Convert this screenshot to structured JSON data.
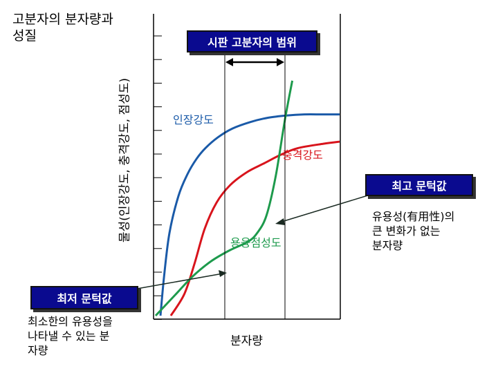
{
  "title": "고분자의 분자량과\n성질",
  "colors": {
    "tensile": "#1a5aa8",
    "impact": "#d8141c",
    "melt_viscosity": "#1d9a4c",
    "box_bg": "#0a0a8f"
  },
  "annotations": {
    "commercial_range": "시판 고분자의 범위",
    "max_value": "최고 문턱값",
    "max_note": "유용성(有用性)의\n큰 변화가 없는\n분자량",
    "min_value": "최저 문턱값",
    "min_note": "최소한의 유용성을\n나타낼 수 있는 분\n자량"
  },
  "chart_data": {
    "type": "line",
    "title": "",
    "xlabel": "분자량",
    "ylabel": "물성(인장강도, 충격강도, 점성도)",
    "xlim": [
      0,
      100
    ],
    "ylim": [
      0,
      100
    ],
    "grid": false,
    "series": [
      {
        "name": "인장강도",
        "color": "#1a5aa8",
        "x": [
          0,
          2,
          5,
          10,
          15,
          20,
          25,
          32,
          40,
          50,
          60,
          70,
          80,
          90,
          100
        ],
        "y": [
          0,
          18,
          38,
          55,
          65,
          72,
          77,
          82,
          86,
          89,
          91,
          92,
          92.5,
          92.5,
          92.5
        ]
      },
      {
        "name": "충격강도",
        "color": "#d8141c",
        "x": [
          0,
          8,
          14,
          20,
          27,
          35,
          45,
          55,
          65,
          75,
          90,
          100
        ],
        "y": [
          0,
          10,
          24,
          40,
          52,
          60,
          66,
          70,
          74,
          77,
          79,
          80
        ]
      },
      {
        "name": "용융점성도",
        "color": "#1d9a4c",
        "x": [
          0,
          10,
          20,
          30,
          40,
          50,
          55,
          60,
          65,
          70,
          74
        ],
        "y": [
          0,
          9,
          18,
          25,
          30,
          34,
          38,
          46,
          64,
          90,
          108
        ]
      }
    ],
    "commercial_range_x": [
      40,
      70
    ]
  }
}
